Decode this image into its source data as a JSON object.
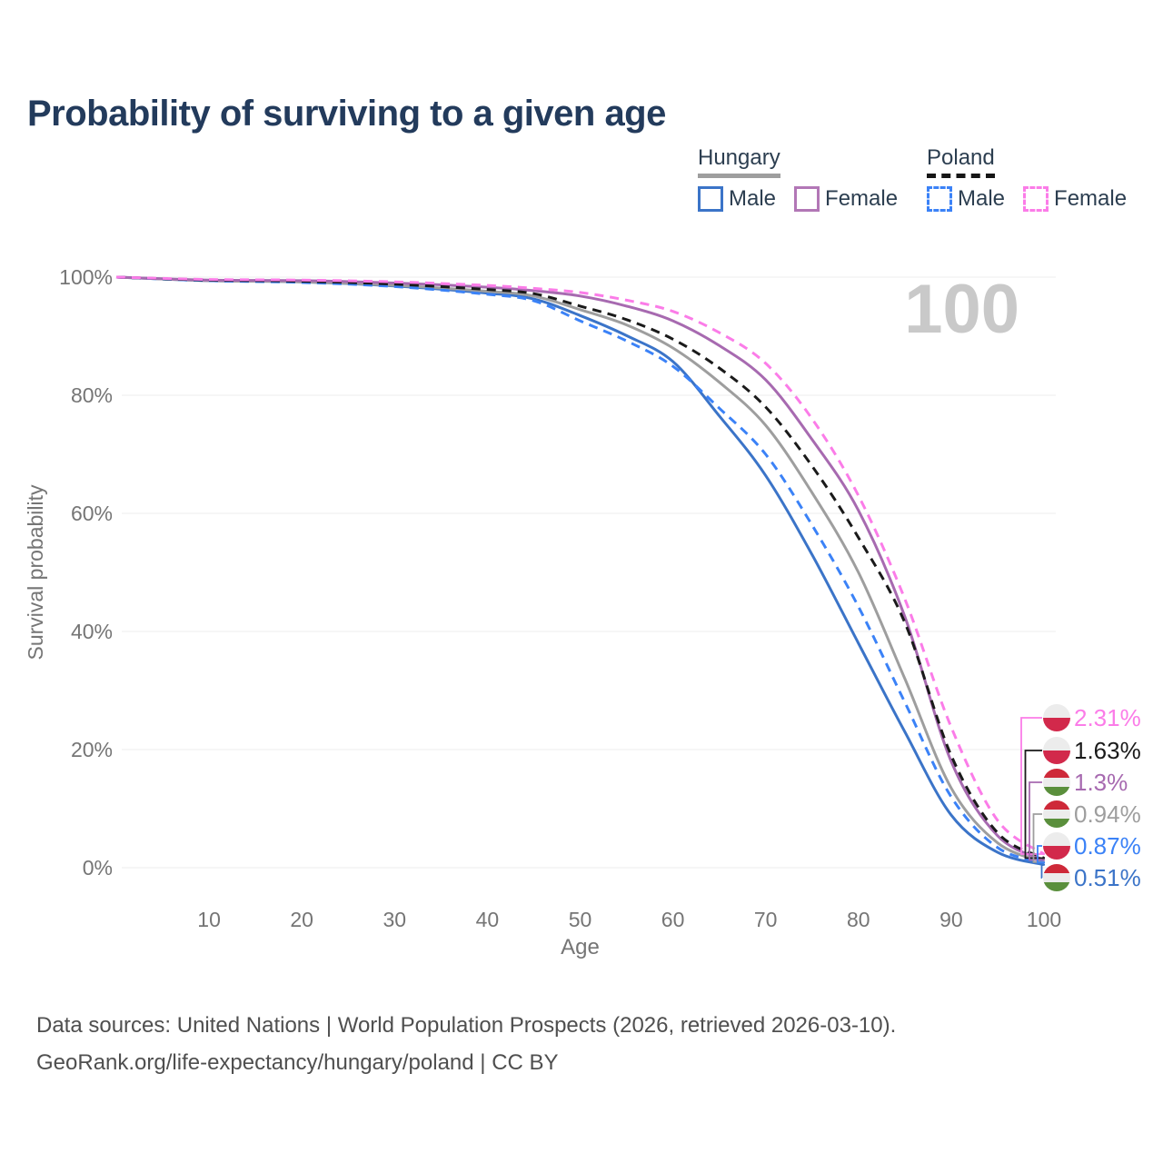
{
  "title": "Probability of surviving to a given age",
  "legend": {
    "groups": [
      {
        "label": "Hungary",
        "underline": "solid",
        "underline_color": "#9e9e9e",
        "items": [
          {
            "label": "Male",
            "color": "#3b74c8",
            "dash": false
          },
          {
            "label": "Female",
            "color": "#b277b6",
            "dash": false
          }
        ]
      },
      {
        "label": "Poland",
        "underline": "dashed",
        "underline_color": "#161616",
        "items": [
          {
            "label": "Male",
            "color": "#3b82f7",
            "dash": true
          },
          {
            "label": "Female",
            "color": "#fb7ce8",
            "dash": true
          }
        ]
      }
    ]
  },
  "axes": {
    "y": {
      "label": "Survival probability",
      "tick_values": [
        0,
        20,
        40,
        60,
        80,
        100
      ],
      "tick_labels": [
        "0%",
        "20%",
        "40%",
        "60%",
        "80%",
        "100%"
      ]
    },
    "x": {
      "label": "Age",
      "tick_values": [
        10,
        20,
        30,
        40,
        50,
        60,
        70,
        80,
        90,
        100
      ],
      "tick_labels": [
        "10",
        "20",
        "30",
        "40",
        "50",
        "60",
        "70",
        "80",
        "90",
        "100"
      ]
    }
  },
  "annotations": {
    "hover_age_watermark": "100"
  },
  "chart_data": {
    "type": "line",
    "title": "Probability of surviving to a given age",
    "xlabel": "Age",
    "ylabel": "Survival probability",
    "xlim": [
      0,
      100
    ],
    "ylim": [
      0,
      100
    ],
    "grid": "horizontal",
    "x": [
      0,
      10,
      20,
      30,
      40,
      45,
      50,
      55,
      60,
      65,
      70,
      75,
      80,
      85,
      90,
      95,
      100
    ],
    "series": [
      {
        "name": "Hungary Male",
        "country": "hungary",
        "sex": "male",
        "color": "#3b74c8",
        "dash": false,
        "values": [
          100,
          99.4,
          99.2,
          98.5,
          97.3,
          96.3,
          93.5,
          90.1,
          85.7,
          76.5,
          66.4,
          53.0,
          38.0,
          23.0,
          8.9,
          2.6,
          0.51
        ],
        "end_label": "0.51%"
      },
      {
        "name": "Hungary Total",
        "country": "hungary",
        "sex": "both",
        "color": "#9e9e9e",
        "dash": false,
        "values": [
          100,
          99.4,
          99.2,
          98.6,
          97.6,
          96.8,
          94.5,
          91.9,
          88.0,
          82.2,
          74.9,
          63.5,
          50.0,
          32.0,
          13.5,
          4.2,
          0.94
        ],
        "end_label": "0.94%"
      },
      {
        "name": "Hungary Female",
        "country": "hungary",
        "sex": "female",
        "color": "#a76ab0",
        "dash": false,
        "values": [
          100,
          99.5,
          99.4,
          99.0,
          98.3,
          97.7,
          96.8,
          95.1,
          92.6,
          88.4,
          82.6,
          72.5,
          60.5,
          42.5,
          18.0,
          5.4,
          1.3
        ],
        "end_label": "1.3%"
      },
      {
        "name": "Poland Male",
        "country": "poland",
        "sex": "male",
        "color": "#3b82f7",
        "dash": true,
        "values": [
          100,
          99.4,
          99.1,
          98.4,
          97.1,
          96.0,
          92.6,
          89.2,
          84.9,
          77.8,
          70.0,
          58.0,
          44.2,
          28.0,
          12.0,
          3.4,
          0.87
        ],
        "end_label": "0.87%"
      },
      {
        "name": "Poland Total",
        "country": "poland",
        "sex": "both",
        "color": "#1a1a1a",
        "dash": true,
        "values": [
          100,
          99.5,
          99.3,
          98.8,
          97.9,
          97.2,
          95.1,
          92.8,
          89.5,
          84.6,
          78.0,
          68.0,
          55.9,
          41.5,
          19.0,
          5.9,
          1.63
        ],
        "end_label": "1.63%"
      },
      {
        "name": "Poland Female",
        "country": "poland",
        "sex": "female",
        "color": "#fb7ce8",
        "dash": true,
        "values": [
          100,
          99.6,
          99.5,
          99.2,
          98.6,
          98.1,
          97.4,
          96.1,
          94.2,
          90.6,
          85.4,
          76.0,
          63.0,
          45.5,
          23.8,
          8.0,
          2.31
        ],
        "end_label": "2.31%"
      }
    ],
    "flag_colors": {
      "poland_white": "#ececec",
      "poland_red": "#d2294b",
      "hungary_red": "#ce2939",
      "hungary_white": "#ececec",
      "hungary_green": "#5a8f3c"
    }
  },
  "footer": {
    "line1": "Data sources: United Nations | World Population Prospects (2026, retrieved 2026-03-10).",
    "line2": "GeoRank.org/life-expectancy/hungary/poland | CC BY"
  }
}
